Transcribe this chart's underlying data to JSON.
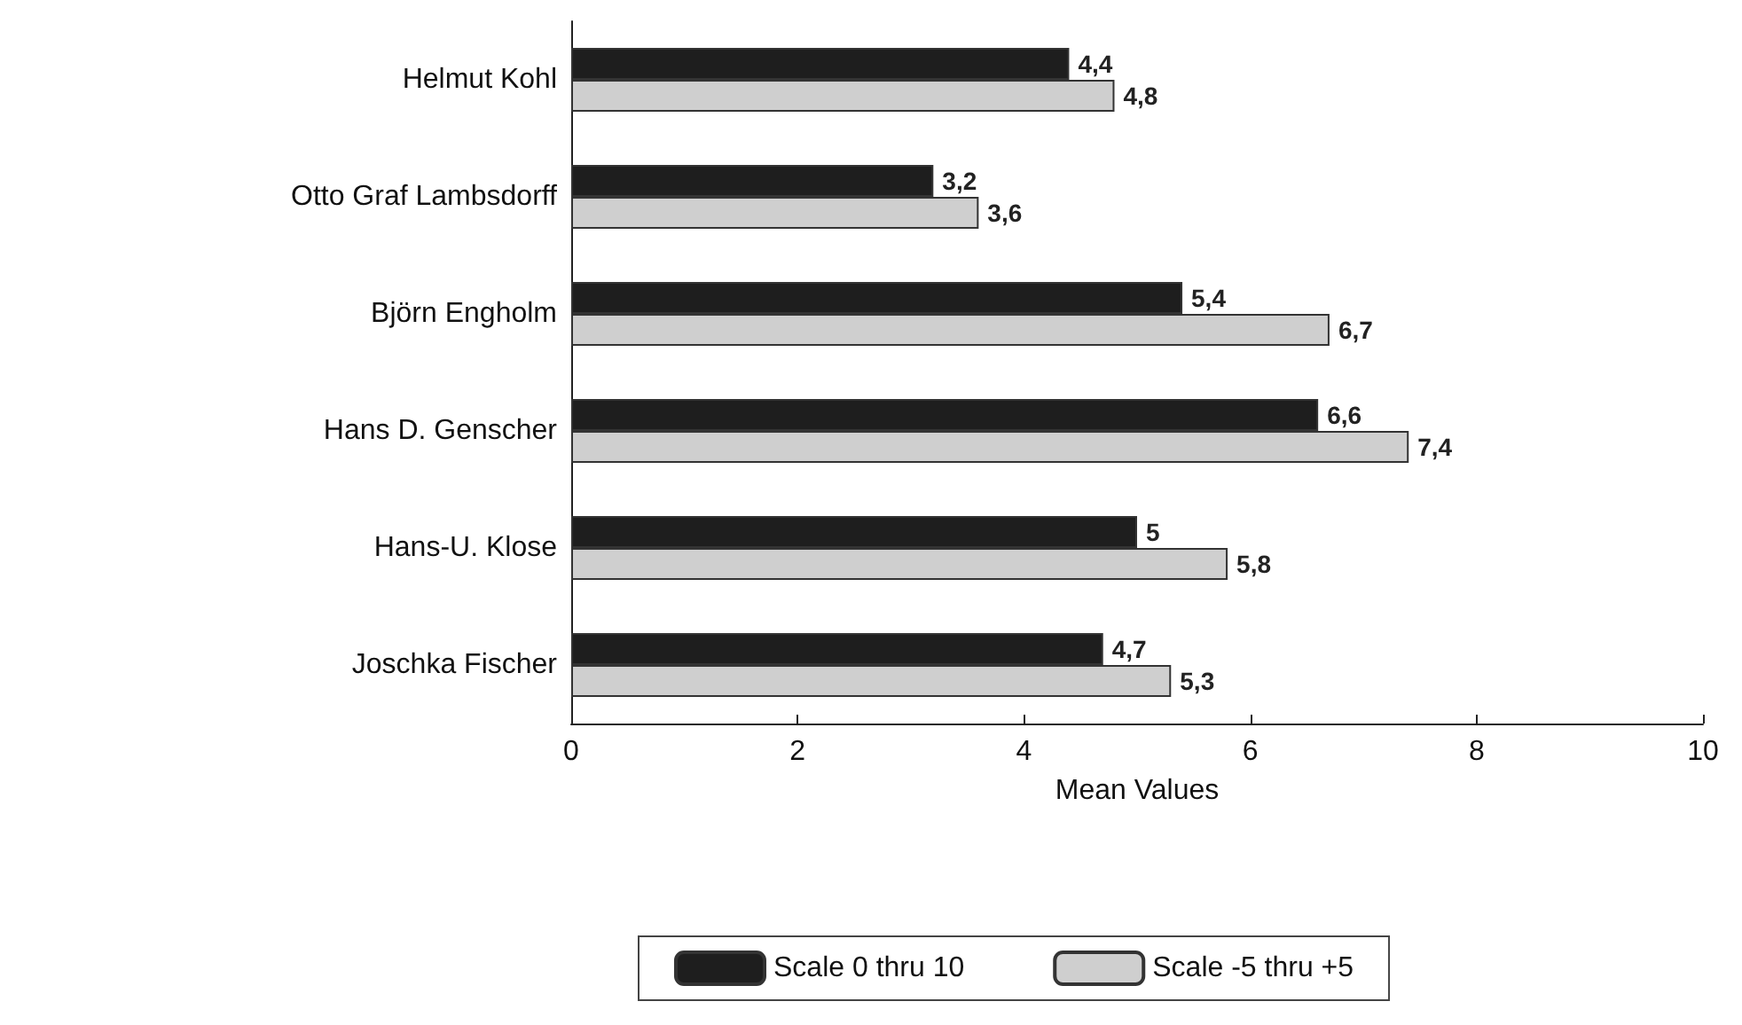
{
  "chart_data": {
    "type": "bar",
    "orientation": "horizontal",
    "xlabel": "Mean Values",
    "categories": [
      "Helmut Kohl",
      "Otto Graf Lambsdorff",
      "Björn Engholm",
      "Hans D. Genscher",
      "Hans-U. Klose",
      "Joschka Fischer"
    ],
    "series": [
      {
        "name": "Scale 0 thru 10",
        "color": "#1e1e1e",
        "values": [
          4.4,
          3.2,
          5.4,
          6.6,
          5,
          4.7
        ],
        "value_labels": [
          "4,4",
          "3,2",
          "5,4",
          "6,6",
          "5",
          "4,7"
        ]
      },
      {
        "name": "Scale -5 thru +5",
        "color": "#cfcfcf",
        "values": [
          4.8,
          3.6,
          6.7,
          7.4,
          5.8,
          5.3
        ],
        "value_labels": [
          "4,8",
          "3,6",
          "6,7",
          "7,4",
          "5,8",
          "5,3"
        ]
      }
    ],
    "xlim": [
      0,
      10
    ],
    "xticks": [
      0,
      2,
      4,
      6,
      8,
      10
    ],
    "grid": false,
    "legend": "bottom"
  }
}
